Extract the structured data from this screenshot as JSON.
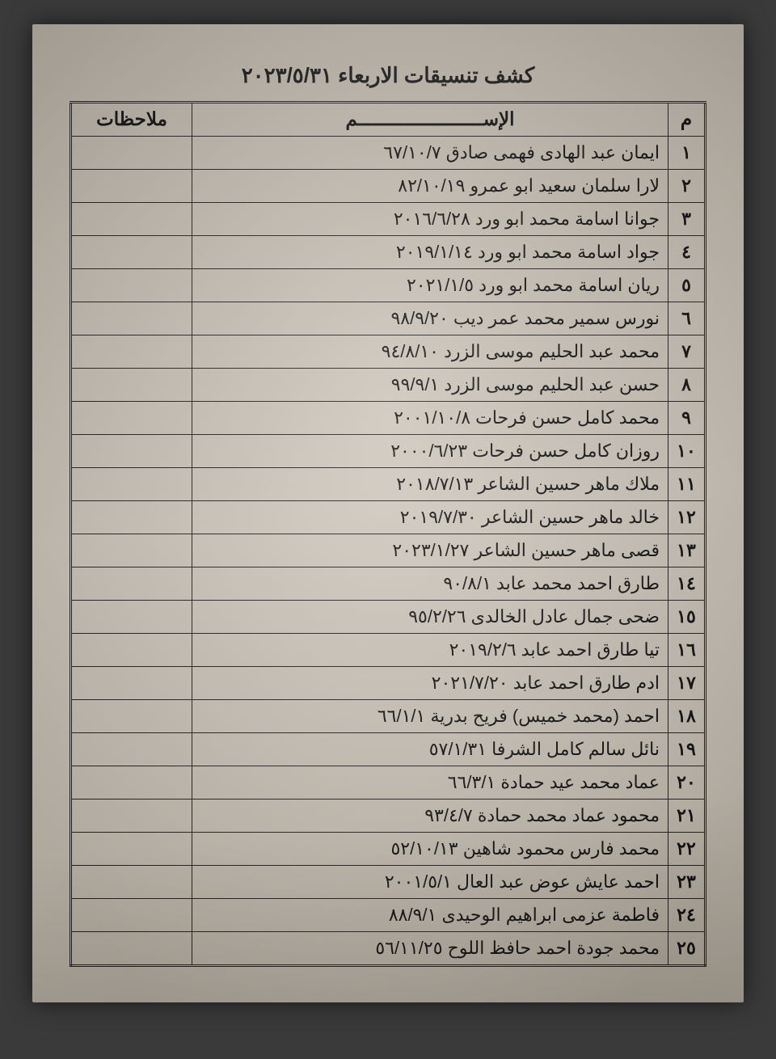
{
  "title": "كشف تنسيقات الاربعاء ٢٠٢٣/٥/٣١",
  "headers": {
    "index": "م",
    "name": "الإســـــــــــــــــــــــم",
    "notes": "ملاحظات"
  },
  "rows": [
    {
      "n": "١",
      "name": "ايمان عبد الهادى فهمى صادق ٦٧/١٠/٧",
      "notes": ""
    },
    {
      "n": "٢",
      "name": "لارا سلمان سعيد ابو عمرو ٨٢/١٠/١٩",
      "notes": ""
    },
    {
      "n": "٣",
      "name": "جوانا اسامة محمد ابو ورد ٢٠١٦/٦/٢٨",
      "notes": ""
    },
    {
      "n": "٤",
      "name": "جواد اسامة محمد ابو ورد ٢٠١٩/١/١٤",
      "notes": ""
    },
    {
      "n": "٥",
      "name": "ريان اسامة محمد ابو ورد ٢٠٢١/١/٥",
      "notes": ""
    },
    {
      "n": "٦",
      "name": "نورس سمير محمد عمر ديب ٩٨/٩/٢٠",
      "notes": ""
    },
    {
      "n": "٧",
      "name": "محمد عبد الحليم موسى الزرد ٩٤/٨/١٠",
      "notes": ""
    },
    {
      "n": "٨",
      "name": "حسن عبد الحليم موسى الزرد ٩٩/٩/١",
      "notes": ""
    },
    {
      "n": "٩",
      "name": "محمد كامل حسن فرحات ٢٠٠١/١٠/٨",
      "notes": ""
    },
    {
      "n": "١٠",
      "name": "روزان كامل حسن فرحات ٢٠٠٠/٦/٢٣",
      "notes": ""
    },
    {
      "n": "١١",
      "name": "ملاك ماهر حسين الشاعر ٢٠١٨/٧/١٣",
      "notes": ""
    },
    {
      "n": "١٢",
      "name": "خالد ماهر حسين الشاعر ٢٠١٩/٧/٣٠",
      "notes": ""
    },
    {
      "n": "١٣",
      "name": "قصى ماهر حسين الشاعر ٢٠٢٣/١/٢٧",
      "notes": ""
    },
    {
      "n": "١٤",
      "name": "طارق احمد محمد عابد ٩٠/٨/١",
      "notes": ""
    },
    {
      "n": "١٥",
      "name": "ضحى جمال عادل الخالدى ٩٥/٢/٢٦",
      "notes": ""
    },
    {
      "n": "١٦",
      "name": "تيا طارق احمد عابد ٢٠١٩/٢/٦",
      "notes": ""
    },
    {
      "n": "١٧",
      "name": "ادم طارق احمد عابد ٢٠٢١/٧/٢٠",
      "notes": ""
    },
    {
      "n": "١٨",
      "name": "احمد (محمد خميس) فريح بدرية ٦٦/١/١",
      "notes": ""
    },
    {
      "n": "١٩",
      "name": "نائل سالم كامل الشرفا ٥٧/١/٣١",
      "notes": ""
    },
    {
      "n": "٢٠",
      "name": "عماد محمد عيد حمادة ٦٦/٣/١",
      "notes": ""
    },
    {
      "n": "٢١",
      "name": "محمود عماد محمد حمادة ٩٣/٤/٧",
      "notes": ""
    },
    {
      "n": "٢٢",
      "name": "محمد فارس محمود شاهين ٥٢/١٠/١٣",
      "notes": ""
    },
    {
      "n": "٢٣",
      "name": "احمد عايش عوض عبد العال ٢٠٠١/٥/١",
      "notes": ""
    },
    {
      "n": "٢٤",
      "name": "فاطمة عزمى ابراهيم الوحيدى ٨٨/٩/١",
      "notes": ""
    },
    {
      "n": "٢٥",
      "name": "محمد جودة احمد حافظ اللوح ٥٦/١١/٢٥",
      "notes": ""
    }
  ]
}
